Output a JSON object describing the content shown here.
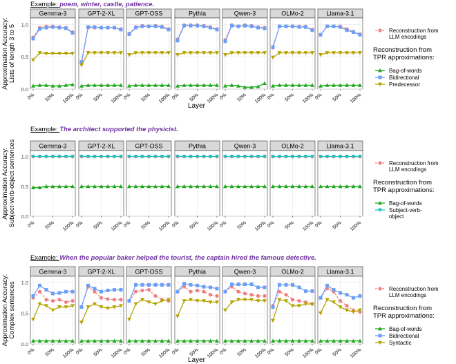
{
  "panel_titles": [
    "Gemma-3",
    "GPT-2-XL",
    "GPT-OSS",
    "Pythia",
    "Qwen-3",
    "OLMo-2",
    "Llama-3.1"
  ],
  "x_ticks": [
    "0%",
    "50%",
    "100%"
  ],
  "y_ticks": [
    "0.0",
    "0.5",
    "1.0"
  ],
  "xlabel": "Layer",
  "legend_llm": "Reconstruction from\nLLM encodings",
  "legend_tpr_heading": "Reconstruction from\nTPR approximations:",
  "colors": {
    "llm": "#f08080",
    "bow": "#1fa81f",
    "bidi": "#6b9ef5",
    "third": "#b5a300",
    "fourth": "#19c2c2",
    "title_purple": "#7030a0"
  },
  "chart_data": [
    {
      "type": "line",
      "example_prefix": "Example:",
      "example_text": "poem, winter, castle, patience.",
      "ylabel": "Approximation Accuracy:\nLists of length 3 to 5",
      "ylim": [
        0,
        1.1
      ],
      "x": [
        0,
        16.7,
        33.3,
        50,
        66.7,
        83.3,
        100
      ],
      "legend": [
        "Bag-of-words",
        "Bidirectional",
        "Predecessor"
      ],
      "series": [
        {
          "name": "Reconstruction from LLM encodings",
          "kind": "llm",
          "values": [
            [
              0.8,
              0.95,
              0.97,
              0.97,
              0.96,
              0.95,
              0.88
            ],
            [
              0.4,
              0.95,
              0.95,
              0.95,
              0.95,
              0.95,
              0.93
            ],
            [
              0.86,
              0.96,
              0.98,
              0.97,
              0.98,
              0.97,
              0.93
            ],
            [
              0.77,
              0.99,
              0.99,
              0.99,
              0.98,
              0.96,
              0.93
            ],
            [
              0.76,
              0.99,
              0.97,
              0.99,
              0.98,
              0.96,
              0.95
            ],
            [
              0.64,
              0.97,
              0.97,
              0.97,
              0.97,
              0.97,
              0.92
            ],
            [
              0.84,
              0.97,
              0.97,
              0.97,
              0.93,
              0.89,
              0.85
            ]
          ]
        },
        {
          "name": "Bag-of-words",
          "kind": "bow",
          "values": [
            [
              0.05,
              0.06,
              0.06,
              0.05,
              0.05,
              0.06,
              0.07
            ],
            [
              0.05,
              0.06,
              0.06,
              0.06,
              0.06,
              0.06,
              0.06
            ],
            [
              0.05,
              0.06,
              0.06,
              0.06,
              0.06,
              0.06,
              0.06
            ],
            [
              0.05,
              0.06,
              0.06,
              0.06,
              0.06,
              0.06,
              0.06
            ],
            [
              0.05,
              0.06,
              0.05,
              0.03,
              0.03,
              0.04,
              0.09
            ],
            [
              0.05,
              0.06,
              0.06,
              0.06,
              0.06,
              0.06,
              0.06
            ],
            [
              0.05,
              0.06,
              0.06,
              0.06,
              0.06,
              0.06,
              0.06
            ]
          ]
        },
        {
          "name": "Bidirectional",
          "kind": "bidi",
          "values": [
            [
              0.78,
              0.93,
              0.95,
              0.96,
              0.95,
              0.94,
              0.87
            ],
            [
              0.42,
              0.96,
              0.96,
              0.95,
              0.95,
              0.95,
              0.92
            ],
            [
              0.85,
              0.95,
              0.97,
              0.97,
              0.97,
              0.96,
              0.92
            ],
            [
              0.75,
              0.98,
              0.98,
              0.98,
              0.97,
              0.95,
              0.92
            ],
            [
              0.74,
              0.98,
              0.97,
              0.98,
              0.97,
              0.95,
              0.94
            ],
            [
              0.65,
              0.97,
              0.97,
              0.97,
              0.96,
              0.96,
              0.91
            ],
            [
              0.84,
              0.97,
              0.97,
              0.96,
              0.91,
              0.88,
              0.84
            ]
          ]
        },
        {
          "name": "Predecessor",
          "kind": "third",
          "values": [
            [
              0.45,
              0.56,
              0.55,
              0.55,
              0.55,
              0.55,
              0.55
            ],
            [
              0.37,
              0.56,
              0.56,
              0.56,
              0.56,
              0.56,
              0.56
            ],
            [
              0.53,
              0.56,
              0.56,
              0.56,
              0.56,
              0.56,
              0.56
            ],
            [
              0.53,
              0.56,
              0.56,
              0.56,
              0.56,
              0.56,
              0.56
            ],
            [
              0.53,
              0.56,
              0.56,
              0.56,
              0.56,
              0.56,
              0.56
            ],
            [
              0.49,
              0.56,
              0.56,
              0.56,
              0.56,
              0.56,
              0.56
            ],
            [
              0.53,
              0.56,
              0.56,
              0.56,
              0.56,
              0.56,
              0.56
            ]
          ]
        }
      ]
    },
    {
      "type": "line",
      "example_prefix": "Example:",
      "example_text": "The architect supported the physicist.",
      "ylabel": "Approximation Accuracy:\nSubject-verb-object sentences",
      "ylim": [
        0,
        1.1
      ],
      "x": [
        0,
        16.7,
        33.3,
        50,
        66.7,
        83.3,
        100
      ],
      "legend": [
        "Bag-of-words",
        "Subject-verb-\nobject"
      ],
      "series": [
        {
          "name": "Reconstruction from LLM encodings",
          "kind": "llm",
          "values": [
            [
              1,
              1,
              1,
              1,
              1,
              1,
              1
            ],
            [
              1,
              1,
              1,
              1,
              1,
              1,
              1
            ],
            [
              1,
              1,
              1,
              1,
              1,
              1,
              1
            ],
            [
              1,
              1,
              1,
              1,
              1,
              1,
              1
            ],
            [
              1,
              1,
              1,
              1,
              1,
              1,
              1
            ],
            [
              1,
              1,
              1,
              1,
              1,
              1,
              1
            ],
            [
              1,
              1,
              1,
              1,
              1,
              1,
              1
            ]
          ]
        },
        {
          "name": "Bag-of-words",
          "kind": "bow",
          "values": [
            [
              0.48,
              0.48,
              0.5,
              0.5,
              0.5,
              0.5,
              0.5
            ],
            [
              0.5,
              0.5,
              0.5,
              0.5,
              0.5,
              0.5,
              0.5
            ],
            [
              0.5,
              0.5,
              0.5,
              0.5,
              0.5,
              0.5,
              0.5
            ],
            [
              0.5,
              0.5,
              0.5,
              0.5,
              0.5,
              0.5,
              0.5
            ],
            [
              0.5,
              0.5,
              0.5,
              0.5,
              0.5,
              0.5,
              0.5
            ],
            [
              0.5,
              0.5,
              0.5,
              0.5,
              0.5,
              0.5,
              0.5
            ],
            [
              0.5,
              0.5,
              0.5,
              0.5,
              0.5,
              0.5,
              0.5
            ]
          ]
        },
        {
          "name": "Subject-verb-object",
          "kind": "fourth",
          "values": [
            [
              1,
              1,
              1,
              1,
              1,
              1,
              1
            ],
            [
              1,
              1,
              1,
              1,
              1,
              1,
              1
            ],
            [
              1,
              1,
              1,
              1,
              1,
              1,
              1
            ],
            [
              1,
              1,
              1,
              1,
              1,
              1,
              1
            ],
            [
              1,
              1,
              1,
              1,
              1,
              1,
              1
            ],
            [
              1,
              1,
              1,
              1,
              1,
              1,
              1
            ],
            [
              1,
              1,
              1,
              1,
              1,
              1,
              1
            ]
          ]
        }
      ]
    },
    {
      "type": "line",
      "example_prefix": "Example:",
      "example_text": "When the popular baker helped the tourist, the captain hired the famous detective.",
      "ylabel": "Approximation Accuracy:\nComplex sentences",
      "ylim": [
        0,
        1.1
      ],
      "x": [
        0,
        16.7,
        33.3,
        50,
        66.7,
        83.3,
        100
      ],
      "legend": [
        "Bag-of-words",
        "Bidirectional",
        "Syntactic"
      ],
      "series": [
        {
          "name": "Reconstruction from LLM encodings",
          "kind": "llm",
          "values": [
            [
              0.75,
              0.85,
              0.72,
              0.7,
              0.72,
              0.68,
              0.7
            ],
            [
              0.6,
              0.93,
              0.85,
              0.75,
              0.73,
              0.72,
              0.72
            ],
            [
              0.7,
              0.85,
              0.87,
              0.88,
              0.78,
              0.72,
              0.7
            ],
            [
              0.85,
              0.93,
              0.85,
              0.87,
              0.85,
              0.8,
              0.78
            ],
            [
              0.85,
              0.93,
              0.85,
              0.82,
              0.8,
              0.78,
              0.78
            ],
            [
              0.62,
              0.85,
              0.8,
              0.72,
              0.7,
              0.68,
              0.65
            ],
            [
              0.75,
              0.9,
              0.85,
              0.7,
              0.62,
              0.55,
              0.52
            ]
          ]
        },
        {
          "name": "Bag-of-words",
          "kind": "bow",
          "values": [
            [
              0.05,
              0.05,
              0.05,
              0.05,
              0.05,
              0.05,
              0.05
            ],
            [
              0.05,
              0.05,
              0.05,
              0.05,
              0.05,
              0.05,
              0.05
            ],
            [
              0.05,
              0.05,
              0.05,
              0.05,
              0.05,
              0.05,
              0.05
            ],
            [
              0.05,
              0.05,
              0.05,
              0.05,
              0.05,
              0.05,
              0.05
            ],
            [
              0.05,
              0.05,
              0.05,
              0.05,
              0.05,
              0.05,
              0.05
            ],
            [
              0.05,
              0.05,
              0.05,
              0.05,
              0.05,
              0.05,
              0.05
            ],
            [
              0.05,
              0.05,
              0.05,
              0.05,
              0.05,
              0.05,
              0.05
            ]
          ]
        },
        {
          "name": "Bidirectional",
          "kind": "bidi",
          "values": [
            [
              0.78,
              0.95,
              0.88,
              0.82,
              0.83,
              0.85,
              0.85
            ],
            [
              0.6,
              0.95,
              0.9,
              0.85,
              0.87,
              0.88,
              0.88
            ],
            [
              0.7,
              0.96,
              0.96,
              0.96,
              0.96,
              0.96,
              0.96
            ],
            [
              0.85,
              0.98,
              0.96,
              0.95,
              0.93,
              0.92,
              0.9
            ],
            [
              0.85,
              0.97,
              0.97,
              0.97,
              0.97,
              0.92,
              0.92
            ],
            [
              0.6,
              0.96,
              0.96,
              0.96,
              0.92,
              0.86,
              0.86
            ],
            [
              0.75,
              0.95,
              0.88,
              0.83,
              0.8,
              0.75,
              0.78
            ]
          ]
        },
        {
          "name": "Syntactic",
          "kind": "third",
          "values": [
            [
              0.4,
              0.65,
              0.62,
              0.55,
              0.6,
              0.6,
              0.62
            ],
            [
              0.35,
              0.6,
              0.65,
              0.6,
              0.58,
              0.6,
              0.62
            ],
            [
              0.4,
              0.65,
              0.72,
              0.68,
              0.65,
              0.7,
              0.72
            ],
            [
              0.45,
              0.7,
              0.72,
              0.7,
              0.7,
              0.68,
              0.68
            ],
            [
              0.55,
              0.68,
              0.72,
              0.72,
              0.72,
              0.7,
              0.7
            ],
            [
              0.38,
              0.72,
              0.7,
              0.62,
              0.62,
              0.65,
              0.65
            ],
            [
              0.5,
              0.72,
              0.68,
              0.6,
              0.55,
              0.52,
              0.55
            ]
          ]
        }
      ]
    }
  ]
}
